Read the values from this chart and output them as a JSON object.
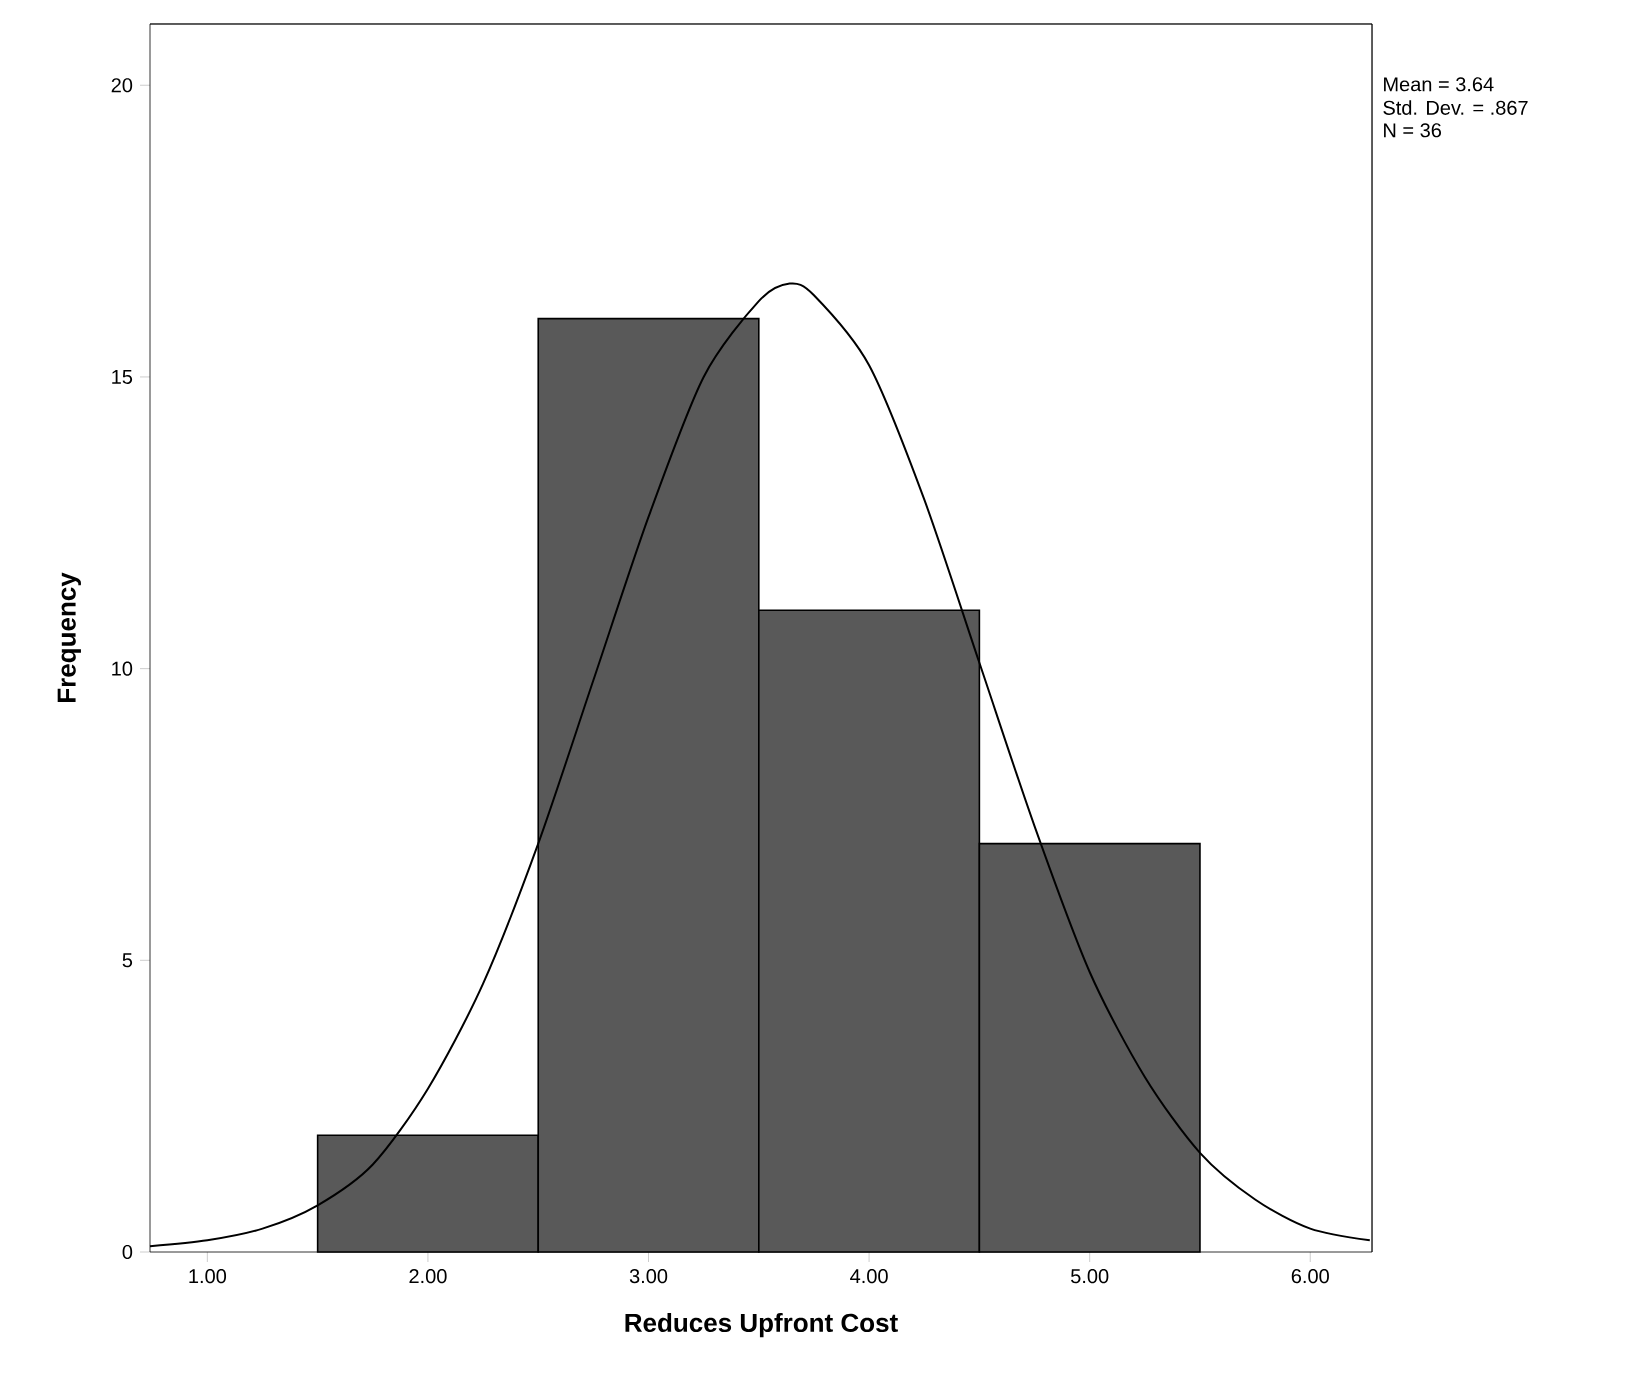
{
  "chart_data": {
    "type": "histogram",
    "xlabel": "Reduces Upfront Cost",
    "ylabel": "Frequency",
    "bins": [
      1.5,
      2.5,
      3.5,
      4.5,
      5.5
    ],
    "values": [
      2,
      16,
      11,
      7
    ],
    "color": "#595959",
    "series": [
      {
        "type": "line",
        "color": "#000000",
        "x": [
          0.74,
          1.0,
          1.25,
          1.5,
          1.75,
          2.0,
          2.25,
          2.5,
          2.75,
          3.0,
          3.25,
          3.5,
          3.64,
          3.75,
          4.0,
          4.25,
          4.5,
          4.75,
          5.0,
          5.25,
          5.5,
          5.75,
          6.0,
          6.27
        ],
        "values": [
          0.1,
          0.2,
          0.4,
          0.8,
          1.5,
          2.8,
          4.6,
          7.0,
          9.8,
          12.6,
          15.0,
          16.3,
          16.6,
          16.4,
          15.2,
          12.9,
          10.1,
          7.3,
          4.8,
          3.0,
          1.7,
          0.9,
          0.4,
          0.2
        ]
      }
    ],
    "xlim": [
      0.74,
      6.28
    ],
    "ylim": [
      0,
      21.05
    ],
    "xticks": [
      {
        "value": 1,
        "label": "1.00"
      },
      {
        "value": 2,
        "label": "2.00"
      },
      {
        "value": 3,
        "label": "3.00"
      },
      {
        "value": 4,
        "label": "4.00"
      },
      {
        "value": 5,
        "label": "5.00"
      },
      {
        "value": 6,
        "label": "6.00"
      }
    ],
    "yticks": [
      0,
      5,
      10,
      15,
      20
    ],
    "annotations": [
      "Mean = 3.64",
      "Std. Dev. = .867",
      "N = 36"
    ],
    "grid": false,
    "legend": false,
    "marker": "none",
    "line_style": "solid"
  }
}
